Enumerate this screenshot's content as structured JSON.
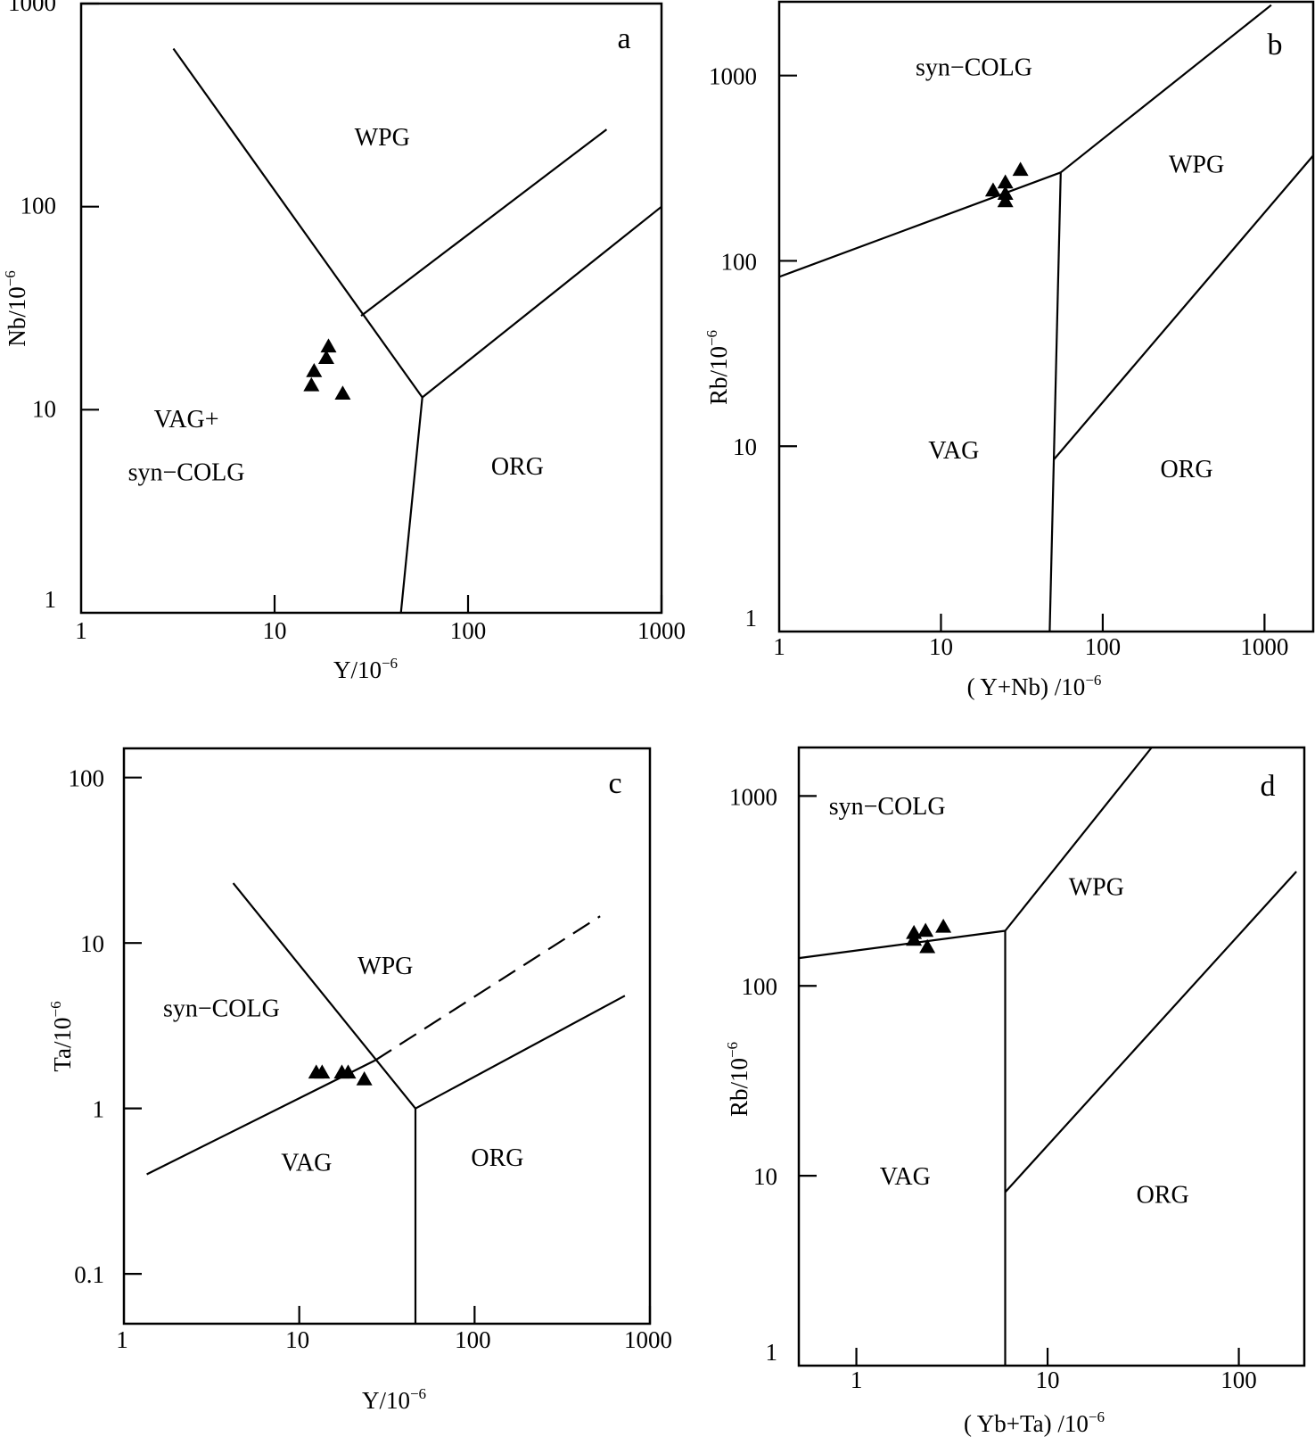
{
  "chart_data": [
    {
      "type": "scatter",
      "panel_label": "a",
      "x_scale": "log",
      "y_scale": "log",
      "xlim": [
        1,
        1000
      ],
      "ylim": [
        1,
        1000
      ],
      "xlabel": "Y/10",
      "xlabel_exponent": "−6",
      "ylabel": "Nb/10",
      "ylabel_exponent": "−6",
      "x_ticks": [
        1,
        10,
        100,
        1000
      ],
      "y_ticks": [
        1,
        10,
        100,
        1000
      ],
      "x_tick_labels": [
        "1",
        "10",
        "100",
        "1000"
      ],
      "y_tick_labels": [
        "1",
        "10",
        "100",
        "1000"
      ],
      "boundaries": [
        {
          "style": "solid",
          "points": [
            [
              3.0,
              600
            ],
            [
              58,
              11.5
            ]
          ]
        },
        {
          "style": "solid",
          "points": [
            [
              28,
              29
            ],
            [
              520,
              240
            ]
          ]
        },
        {
          "style": "solid",
          "points": [
            [
              58,
              11.5
            ],
            [
              1000,
              100
            ]
          ]
        },
        {
          "style": "solid",
          "points": [
            [
              58,
              11.5
            ],
            [
              45,
              1
            ]
          ]
        }
      ],
      "regions": [
        {
          "label": "WPG",
          "x": 36,
          "y": 200
        },
        {
          "label": "VAG+",
          "x": 3.5,
          "y": 8.2
        },
        {
          "label": "syn−COLG",
          "x": 3.5,
          "y": 4.5
        },
        {
          "label": "ORG",
          "x": 180,
          "y": 4.8
        }
      ],
      "points": [
        [
          15.5,
          13.2
        ],
        [
          16,
          15.5
        ],
        [
          18.5,
          18
        ],
        [
          19,
          20.5
        ],
        [
          22.5,
          12
        ]
      ]
    },
    {
      "type": "scatter",
      "panel_label": "b",
      "x_scale": "log",
      "y_scale": "log",
      "xlim": [
        1,
        2000
      ],
      "ylim": [
        1,
        2500
      ],
      "xlabel": "( Y+Nb) /10",
      "xlabel_exponent": "−6",
      "ylabel": "Rb/10",
      "ylabel_exponent": "−6",
      "x_ticks": [
        1,
        10,
        100,
        1000
      ],
      "y_ticks": [
        1,
        10,
        100,
        1000
      ],
      "x_tick_labels": [
        "1",
        "10",
        "100",
        "1000"
      ],
      "y_tick_labels": [
        "1",
        "10",
        "100",
        "1000"
      ],
      "boundaries": [
        {
          "style": "solid",
          "points": [
            [
              1,
              82
            ],
            [
              55,
              300
            ]
          ]
        },
        {
          "style": "solid",
          "points": [
            [
              55,
              300
            ],
            [
              47,
              1
            ]
          ]
        },
        {
          "style": "solid",
          "points": [
            [
              55,
              300
            ],
            [
              1100,
              2400
            ]
          ]
        },
        {
          "style": "solid",
          "points": [
            [
              50,
              8.5
            ],
            [
              2000,
              370
            ]
          ]
        }
      ],
      "regions": [
        {
          "label": "syn−COLG",
          "x": 16,
          "y": 1000
        },
        {
          "label": "WPG",
          "x": 380,
          "y": 300
        },
        {
          "label": "VAG",
          "x": 12,
          "y": 8.6
        },
        {
          "label": "ORG",
          "x": 330,
          "y": 6.8
        }
      ],
      "points": [
        [
          21,
          240
        ],
        [
          25,
          265
        ],
        [
          25,
          230
        ],
        [
          25,
          210
        ],
        [
          31,
          310
        ]
      ]
    },
    {
      "type": "scatter",
      "panel_label": "c",
      "x_scale": "log",
      "y_scale": "log",
      "xlim": [
        1,
        1000
      ],
      "ylim": [
        0.05,
        150
      ],
      "xlabel": "Y/10",
      "xlabel_exponent": "−6",
      "ylabel": "Ta/10",
      "ylabel_exponent": "−6",
      "x_ticks": [
        1,
        10,
        100,
        1000
      ],
      "y_ticks": [
        0.1,
        1,
        10,
        100
      ],
      "x_tick_labels": [
        "1",
        "10",
        "100",
        "1000"
      ],
      "y_tick_labels": [
        "0.1",
        "1",
        "10",
        "100"
      ],
      "boundaries": [
        {
          "style": "solid",
          "points": [
            [
              4.2,
              23
            ],
            [
              46,
              1
            ]
          ]
        },
        {
          "style": "solid",
          "points": [
            [
              1.35,
              0.4
            ],
            [
              27,
              1.95
            ]
          ]
        },
        {
          "style": "dashed",
          "points": [
            [
              27,
              1.95
            ],
            [
              520,
              14.5
            ]
          ]
        },
        {
          "style": "solid",
          "points": [
            [
              46,
              1
            ],
            [
              720,
              4.8
            ]
          ]
        },
        {
          "style": "solid",
          "points": [
            [
              46,
              1
            ],
            [
              46,
              0.05
            ]
          ]
        }
      ],
      "regions": [
        {
          "label": "WPG",
          "x": 31,
          "y": 6.5
        },
        {
          "label": "syn−COLG",
          "x": 3.6,
          "y": 3.6
        },
        {
          "label": "VAG",
          "x": 11,
          "y": 0.42
        },
        {
          "label": "ORG",
          "x": 135,
          "y": 0.45
        }
      ],
      "points": [
        [
          12.5,
          1.65
        ],
        [
          13.5,
          1.65
        ],
        [
          17.5,
          1.65
        ],
        [
          19,
          1.65
        ],
        [
          23.5,
          1.5
        ]
      ]
    },
    {
      "type": "scatter",
      "panel_label": "d",
      "x_scale": "log",
      "y_scale": "log",
      "xlim": [
        0.5,
        220
      ],
      "ylim": [
        1,
        1800
      ],
      "xlabel": "( Yb+Ta) /10",
      "xlabel_exponent": "−6",
      "ylabel": "Rb/10",
      "ylabel_exponent": "−6",
      "x_ticks": [
        1,
        10,
        100
      ],
      "y_ticks": [
        1,
        10,
        100,
        1000
      ],
      "x_tick_labels": [
        "1",
        "10",
        "100"
      ],
      "y_tick_labels": [
        "1",
        "10",
        "100",
        "1000"
      ],
      "boundaries": [
        {
          "style": "solid",
          "points": [
            [
              0.5,
              140
            ],
            [
              6,
              195
            ]
          ]
        },
        {
          "style": "solid",
          "points": [
            [
              6,
              195
            ],
            [
              6,
              1
            ]
          ]
        },
        {
          "style": "solid",
          "points": [
            [
              6,
              195
            ],
            [
              35,
              1800
            ]
          ]
        },
        {
          "style": "solid",
          "points": [
            [
              6,
              8.2
            ],
            [
              200,
              400
            ]
          ]
        }
      ],
      "regions": [
        {
          "label": "syn−COLG",
          "x": 1.45,
          "y": 800
        },
        {
          "label": "WPG",
          "x": 18,
          "y": 300
        },
        {
          "label": "VAG",
          "x": 1.8,
          "y": 9
        },
        {
          "label": "ORG",
          "x": 40,
          "y": 7.2
        }
      ],
      "points": [
        [
          2,
          190
        ],
        [
          2,
          175
        ],
        [
          2.3,
          195
        ],
        [
          2.35,
          160
        ],
        [
          2.85,
          205
        ]
      ]
    }
  ]
}
